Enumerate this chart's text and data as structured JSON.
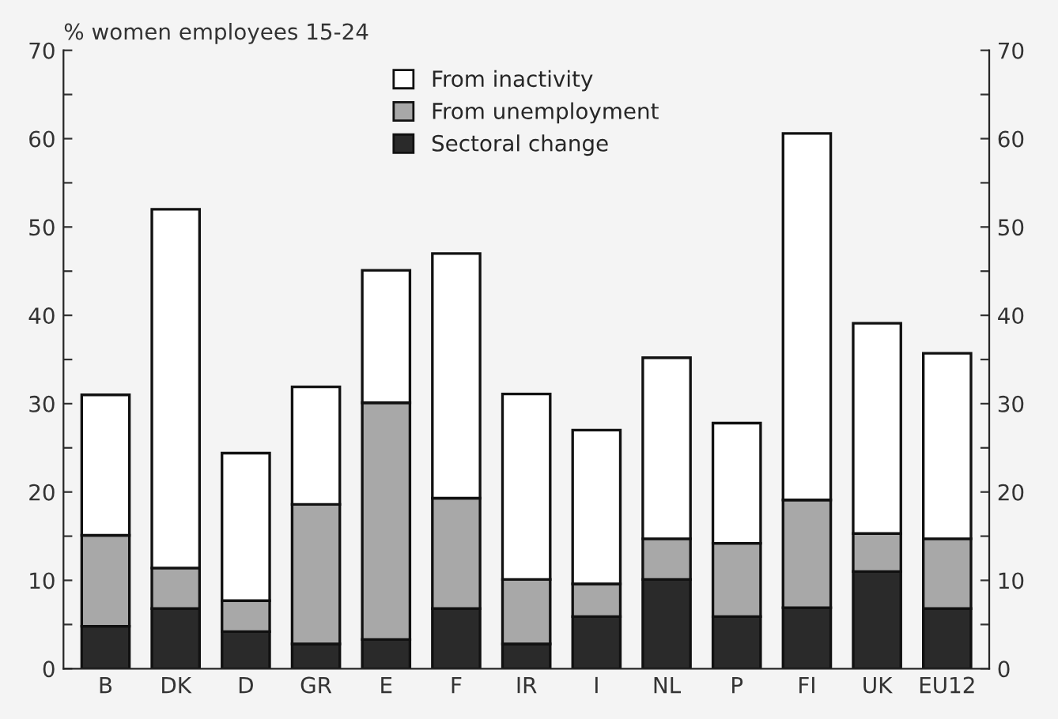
{
  "chart_data": {
    "type": "bar",
    "stacked": true,
    "ylabel": "% women employees 15-24",
    "categories": [
      "B",
      "DK",
      "D",
      "GR",
      "E",
      "F",
      "IR",
      "I",
      "NL",
      "P",
      "FI",
      "UK",
      "EU12"
    ],
    "series": [
      {
        "name": "Sectoral change",
        "color": "#2a2a2a",
        "values": [
          4.8,
          6.8,
          4.2,
          2.8,
          3.3,
          6.8,
          2.8,
          5.9,
          10.1,
          5.9,
          6.9,
          11.0,
          6.8
        ]
      },
      {
        "name": "From unemployment",
        "color": "#a8a8a8",
        "values": [
          10.3,
          4.6,
          3.5,
          15.8,
          26.8,
          12.5,
          7.3,
          3.7,
          4.6,
          8.3,
          12.2,
          4.3,
          7.9
        ]
      },
      {
        "name": "From inactivity",
        "color": "#ffffff",
        "values": [
          15.9,
          40.6,
          16.7,
          13.3,
          15.0,
          27.7,
          21.0,
          17.4,
          20.5,
          13.6,
          41.5,
          23.8,
          21.0
        ]
      }
    ],
    "ylim": [
      0,
      70
    ],
    "yticks": [
      0,
      {
        "value": 5,
        "label": null
      },
      10,
      {
        "value": 15,
        "label": null
      },
      20,
      {
        "value": 25,
        "label": null
      },
      30,
      {
        "value": 35,
        "label": null
      },
      40,
      {
        "value": 45,
        "label": null
      },
      50,
      {
        "value": 55,
        "label": null
      },
      60,
      {
        "value": 65,
        "label": null
      },
      70
    ],
    "y2lim": [
      0,
      70
    ],
    "y2ticks": [
      0,
      {
        "value": 5,
        "label": null
      },
      10,
      {
        "value": 15,
        "label": null
      },
      20,
      {
        "value": 25,
        "label": null
      },
      30,
      {
        "value": 35,
        "label": null
      },
      40,
      {
        "value": 45,
        "label": null
      },
      50,
      {
        "value": 55,
        "label": null
      },
      60,
      {
        "value": 65,
        "label": null
      },
      70
    ],
    "legend": "top",
    "grid": false
  }
}
